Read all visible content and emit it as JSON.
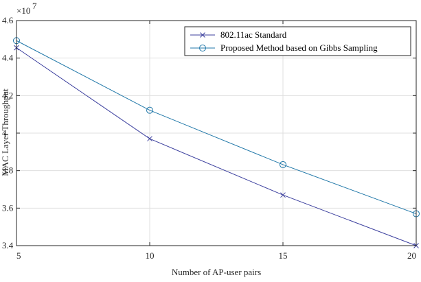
{
  "chart_data": {
    "type": "line",
    "xlabel": "Number of AP-user pairs",
    "ylabel": "MAC Layer Throughput",
    "y_exponent_label": "×10",
    "y_exponent_power": "7",
    "x": [
      5,
      10,
      15,
      20
    ],
    "xlim": [
      5,
      20
    ],
    "ylim": [
      3.4,
      4.6
    ],
    "x_ticks": [
      5,
      10,
      15,
      20
    ],
    "y_ticks": [
      3.4,
      3.6,
      3.8,
      4.0,
      4.2,
      4.4,
      4.6
    ],
    "x_tick_labels": [
      "5",
      "10",
      "15",
      "20"
    ],
    "y_tick_labels": [
      "3.4",
      "3.6",
      "3.8",
      "4",
      "4.2",
      "4.4",
      "4.6"
    ],
    "grid": true,
    "legend_position": "top-right",
    "series": [
      {
        "name": "802.11ac Standard",
        "marker": "x",
        "color": "#3b3f9e",
        "values": [
          4.455,
          3.97,
          3.67,
          3.4
        ]
      },
      {
        "name": "Proposed Method based on Gibbs Sampling",
        "marker": "o",
        "color": "#1f77a8",
        "values": [
          4.493,
          4.122,
          3.832,
          3.57
        ]
      }
    ]
  }
}
